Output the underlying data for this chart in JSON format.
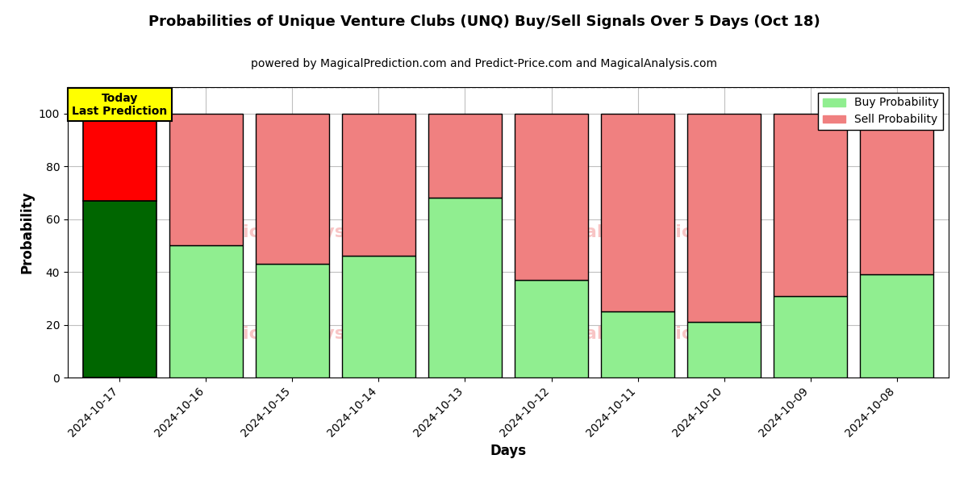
{
  "title": "Probabilities of Unique Venture Clubs (UNQ) Buy/Sell Signals Over 5 Days (Oct 18)",
  "subtitle": "powered by MagicalPrediction.com and Predict-Price.com and MagicalAnalysis.com",
  "xlabel": "Days",
  "ylabel": "Probability",
  "dates": [
    "2024-10-17",
    "2024-10-16",
    "2024-10-15",
    "2024-10-14",
    "2024-10-13",
    "2024-10-12",
    "2024-10-11",
    "2024-10-10",
    "2024-10-09",
    "2024-10-08"
  ],
  "buy_values": [
    67,
    50,
    43,
    46,
    68,
    37,
    25,
    21,
    31,
    39
  ],
  "sell_values": [
    33,
    50,
    57,
    54,
    32,
    63,
    75,
    79,
    69,
    61
  ],
  "today_buy_color": "#006600",
  "today_sell_color": "#FF0000",
  "buy_color": "#90EE90",
  "sell_color": "#F08080",
  "today_label_bg": "#FFFF00",
  "today_label_text": "Today\nLast Prediction",
  "legend_buy_label": "Buy Probability",
  "legend_sell_label": "Sell Probability",
  "ylim": [
    0,
    110
  ],
  "dashed_line_y": 110,
  "bar_width": 0.85,
  "watermark_color": "#F08080",
  "watermark_alpha": 0.45
}
